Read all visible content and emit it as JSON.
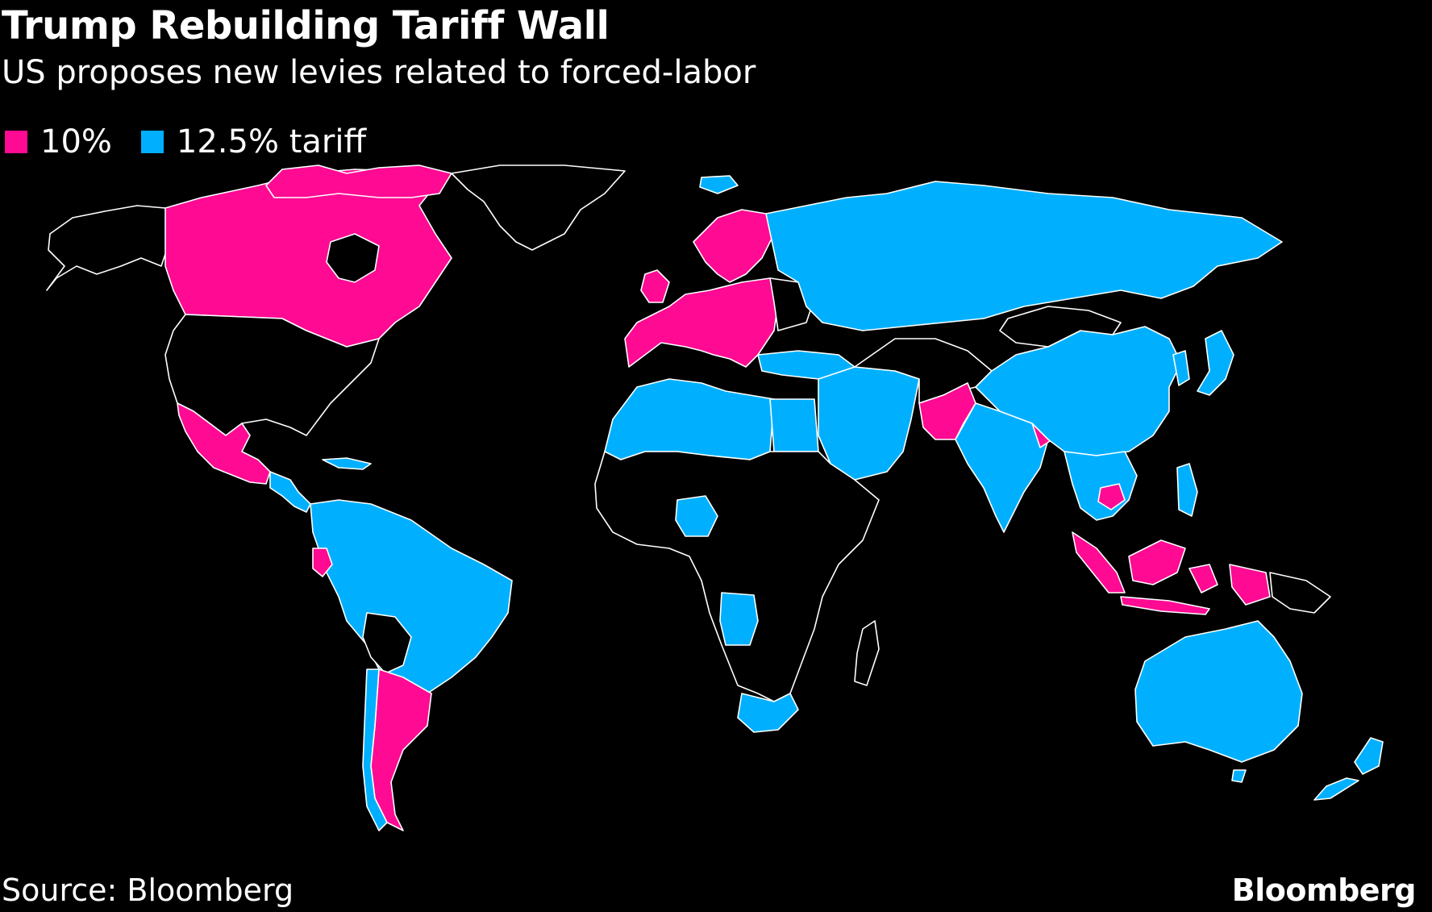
{
  "title": "Trump Rebuilding Tariff Wall",
  "subtitle": "US proposes new levies related to forced-labor",
  "legend": [
    {
      "label": "10%",
      "color": "#ff0a93"
    },
    {
      "label": "12.5% tariff",
      "color": "#00b0ff"
    }
  ],
  "colors": {
    "background": "#000000",
    "border": "#ffffff",
    "pink": "#ff0a93",
    "blue": "#00b0ff",
    "none": "#000000"
  },
  "source": "Source: Bloomberg",
  "brand": "Bloomberg",
  "regions": [
    {
      "name": "canada",
      "class": "pink"
    },
    {
      "name": "alaska",
      "class": "none"
    },
    {
      "name": "greenland",
      "class": "none"
    },
    {
      "name": "usa",
      "class": "none"
    },
    {
      "name": "mexico",
      "class": "pink"
    },
    {
      "name": "central-america",
      "class": "blue"
    },
    {
      "name": "south-america-north",
      "class": "blue"
    },
    {
      "name": "ecuador",
      "class": "pink"
    },
    {
      "name": "bolivia",
      "class": "none"
    },
    {
      "name": "argentina",
      "class": "pink"
    },
    {
      "name": "chile",
      "class": "blue"
    },
    {
      "name": "iceland",
      "class": "blue"
    },
    {
      "name": "europe-eu",
      "class": "pink"
    },
    {
      "name": "uk",
      "class": "pink"
    },
    {
      "name": "scandinavia",
      "class": "pink"
    },
    {
      "name": "russia",
      "class": "blue"
    },
    {
      "name": "north-africa",
      "class": "blue"
    },
    {
      "name": "egypt",
      "class": "blue"
    },
    {
      "name": "middle-east",
      "class": "blue"
    },
    {
      "name": "subsaharan-africa",
      "class": "none"
    },
    {
      "name": "nigeria",
      "class": "blue"
    },
    {
      "name": "angola",
      "class": "blue"
    },
    {
      "name": "south-africa",
      "class": "blue"
    },
    {
      "name": "madagascar",
      "class": "none"
    },
    {
      "name": "central-asia",
      "class": "none"
    },
    {
      "name": "pakistan",
      "class": "pink"
    },
    {
      "name": "india",
      "class": "blue"
    },
    {
      "name": "bangladesh",
      "class": "pink"
    },
    {
      "name": "china",
      "class": "blue"
    },
    {
      "name": "mongolia",
      "class": "none"
    },
    {
      "name": "japan",
      "class": "blue"
    },
    {
      "name": "southeast-asia",
      "class": "blue"
    },
    {
      "name": "cambodia",
      "class": "pink"
    },
    {
      "name": "indonesia",
      "class": "pink"
    },
    {
      "name": "philippines",
      "class": "blue"
    },
    {
      "name": "png",
      "class": "none"
    },
    {
      "name": "australia",
      "class": "blue"
    },
    {
      "name": "new-zealand",
      "class": "blue"
    }
  ]
}
